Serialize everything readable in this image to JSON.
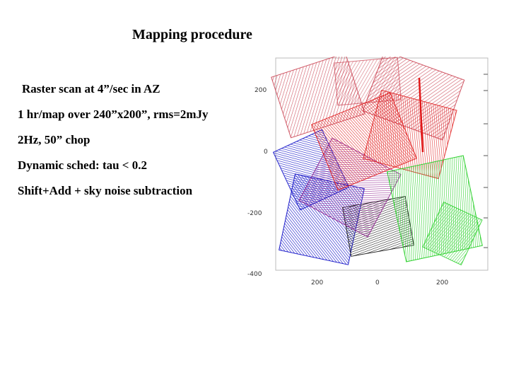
{
  "slide": {
    "title": "Mapping procedure",
    "bullets": [
      "Raster scan at 4”/sec in AZ",
      "1 hr/map over 240”x200”, rms=2mJy",
      "2Hz, 50” chop",
      "Dynamic sched: tau < 0.2",
      "Shift+Add + sky noise subtraction"
    ]
  },
  "figure": {
    "y_tick_labels": [
      "200",
      "0",
      "-200",
      "-400"
    ],
    "x_tick_labels": [
      "200",
      "0",
      "200"
    ],
    "colors": {
      "pink": "#c83c4c",
      "red": "#e01818",
      "purple": "#8c1c8c",
      "blue": "#1414c8",
      "black": "#141414",
      "green": "#28d028",
      "frame": "#888888"
    }
  }
}
